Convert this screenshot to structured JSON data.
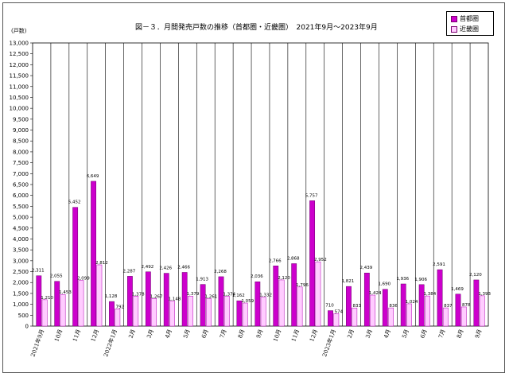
{
  "chart_data": {
    "type": "bar",
    "title": "図－３．月間発売戸数の推移（首都圏・近畿圏）　2021年9月～2023年9月",
    "ylabel": "(戸数)",
    "ylim": [
      0,
      13000
    ],
    "yticks": [
      "0",
      "500",
      "1,000",
      "1,500",
      "2,000",
      "2,500",
      "3,000",
      "3,500",
      "4,000",
      "4,500",
      "5,000",
      "5,500",
      "6,000",
      "6,500",
      "7,000",
      "7,500",
      "8,000",
      "8,500",
      "9,000",
      "9,500",
      "10,000",
      "10,500",
      "11,000",
      "11,500",
      "12,000",
      "12,500",
      "13,000"
    ],
    "categories": [
      "2021年9月",
      "10月",
      "11月",
      "12月",
      "2022年1月",
      "2月",
      "3月",
      "4月",
      "5月",
      "6月",
      "7月",
      "8月",
      "9月",
      "10月",
      "11月",
      "12月",
      "2023年1月",
      "2月",
      "3月",
      "4月",
      "5月",
      "6月",
      "7月",
      "8月",
      "9月"
    ],
    "series": [
      {
        "name": "首都圏",
        "color": "#cc00cc",
        "values": [
          2311,
          2055,
          5452,
          6649,
          1128,
          2287,
          2492,
          2426,
          2466,
          1913,
          2268,
          1162,
          2036,
          2766,
          2868,
          5757,
          710,
          1821,
          2439,
          1690,
          1936,
          1906,
          2591,
          1469,
          2120
        ],
        "labels": [
          "2,311",
          "2,055",
          "5,452",
          "6,649",
          "1,128",
          "2,287",
          "2,492",
          "2,426",
          "2,466",
          "1,913",
          "2,268",
          "1,162",
          "2,036",
          "2,766",
          "2,868",
          "5,757",
          "710",
          "1,821",
          "2,439",
          "1,690",
          "1,936",
          "1,906",
          "2,591",
          "1,469",
          "2,120"
        ]
      },
      {
        "name": "近畿圏",
        "color": "#ffccff",
        "values": [
          1210,
          1453,
          2099,
          2812,
          792,
          1378,
          1267,
          1148,
          1379,
          1261,
          1374,
          1059,
          1332,
          2120,
          1796,
          2952,
          574,
          833,
          1424,
          836,
          1024,
          1384,
          837,
          878,
          1393
        ],
        "labels": [
          "1,210",
          "1,453",
          "2,099",
          "2,812",
          "792",
          "1,378",
          "1,267",
          "1,148",
          "1,379",
          "1,261",
          "1,374",
          "1,059",
          "1,332",
          "2,120",
          "1,796",
          "2,952",
          "574",
          "833",
          "1,424",
          "836",
          "1,024",
          "1,384",
          "837",
          "878",
          "1,393"
        ]
      }
    ],
    "grid": "vertical separators",
    "legend": "top-right"
  }
}
